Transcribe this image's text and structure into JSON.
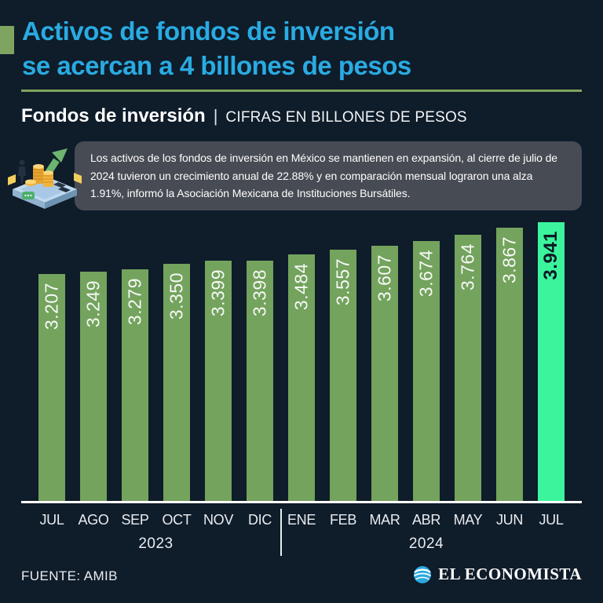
{
  "header": {
    "title_line1": "Activos de fondos de inversión",
    "title_line2": "se acercan a 4 billones de pesos",
    "kicker_bold": "Fondos de inversión",
    "kicker_divider": "|",
    "kicker_rest": "CIFRAS EN BILLONES DE PESOS"
  },
  "callout": {
    "text": "Los activos de los fondos de inversión en México se mantienen en expansión, al cierre de julio de 2024 tuvieron un crecimiento anual de 22.88% y en comparación mensual lograron una alza 1.91%, informó la Asociación Mexicana de Instituciones Bursátiles.",
    "illustration": "isometric-platform-with-coins-person-and-growth-arrow"
  },
  "chart_data": {
    "type": "bar",
    "title": "Fondos de inversión",
    "ylabel": "Billones de pesos",
    "categories": [
      "JUL",
      "AGO",
      "SEP",
      "OCT",
      "NOV",
      "DIC",
      "ENE",
      "FEB",
      "MAR",
      "ABR",
      "MAY",
      "JUN",
      "JUL"
    ],
    "values": [
      3.207,
      3.249,
      3.279,
      3.35,
      3.399,
      3.398,
      3.484,
      3.557,
      3.607,
      3.674,
      3.764,
      3.867,
      3.941
    ],
    "labels": [
      "3.207",
      "3.249",
      "3.279",
      "3.350",
      "3.399",
      "3.398",
      "3.484",
      "3.557",
      "3.607",
      "3.674",
      "3.764",
      "3.867",
      "3.941"
    ],
    "highlight_index": 12,
    "years": [
      {
        "label": "2023",
        "from": 0,
        "to": 5
      },
      {
        "label": "2024",
        "from": 6,
        "to": 12
      }
    ],
    "ylim": [
      0,
      3.941
    ],
    "grid": false,
    "legend": "none",
    "bar_color": "#73A35D",
    "highlight_color": "#3BF59D",
    "label_color": "#F6F8F5",
    "highlight_label_color": "#0D1924"
  },
  "colors": {
    "background": "#0F1C2A",
    "accent_cyan": "#29ABE2",
    "accent_green": "#7FA45F",
    "callout_bg": "#474B53"
  },
  "footer": {
    "source": "FUENTE: AMIB",
    "brand": "EL ECONOMISTA"
  }
}
